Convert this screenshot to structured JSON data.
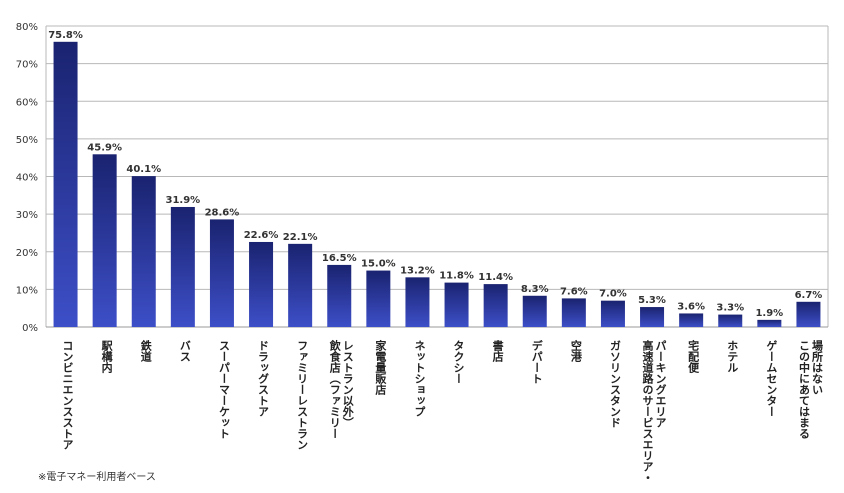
{
  "chart_data": {
    "type": "bar",
    "categories": [
      "コンビニエンスストア",
      "駅構内",
      "鉄道",
      "バス",
      "スーパーマーケット",
      "ドラッグストア",
      "ファミリーレストラン",
      "飲食店（ファミリーレストラン以外）",
      "家電量販店",
      "ネットショップ",
      "タクシー",
      "書店",
      "デパート",
      "空港",
      "ガソリンスタンド",
      "高速道路のサービスエリア・パーキングエリア",
      "宅配便",
      "ホテル",
      "ゲームセンター",
      "この中にあてはまる場所はない"
    ],
    "category_lines": [
      [
        "コンビニエンスストア"
      ],
      [
        "駅構内"
      ],
      [
        "鉄道"
      ],
      [
        "バス"
      ],
      [
        "スーパーマーケット"
      ],
      [
        "ドラッグストア"
      ],
      [
        "ファミリーレストラン"
      ],
      [
        "飲食店（ファミリー",
        "レストラン以外）"
      ],
      [
        "家電量販店"
      ],
      [
        "ネットショップ"
      ],
      [
        "タクシー"
      ],
      [
        "書店"
      ],
      [
        "デパート"
      ],
      [
        "空港"
      ],
      [
        "ガソリンスタンド"
      ],
      [
        "高速道路のサービスエリア・",
        "パーキングエリア"
      ],
      [
        "宅配便"
      ],
      [
        "ホテル"
      ],
      [
        "ゲームセンター"
      ],
      [
        "この中にあてはまる",
        "場所はない"
      ]
    ],
    "values": [
      75.8,
      45.9,
      40.1,
      31.9,
      28.6,
      22.6,
      22.1,
      16.5,
      15.0,
      13.2,
      11.8,
      11.4,
      8.3,
      7.6,
      7.0,
      5.3,
      3.6,
      3.3,
      1.9,
      6.7
    ],
    "value_labels": [
      "75.8%",
      "45.9%",
      "40.1%",
      "31.9%",
      "28.6%",
      "22.6%",
      "22.1%",
      "16.5%",
      "15.0%",
      "13.2%",
      "11.8%",
      "11.4%",
      "8.3%",
      "7.6%",
      "7.0%",
      "5.3%",
      "3.6%",
      "3.3%",
      "1.9%",
      "6.7%"
    ],
    "yticks": [
      "0%",
      "10%",
      "20%",
      "30%",
      "40%",
      "50%",
      "60%",
      "70%",
      "80%"
    ],
    "ylim": [
      0,
      80
    ],
    "grid": true,
    "bar_color_top": "#1a2370",
    "bar_color_bottom": "#3d4fc8",
    "grid_color": "#b8b8b8"
  },
  "footnote": "※電子マネー利用者ベース"
}
